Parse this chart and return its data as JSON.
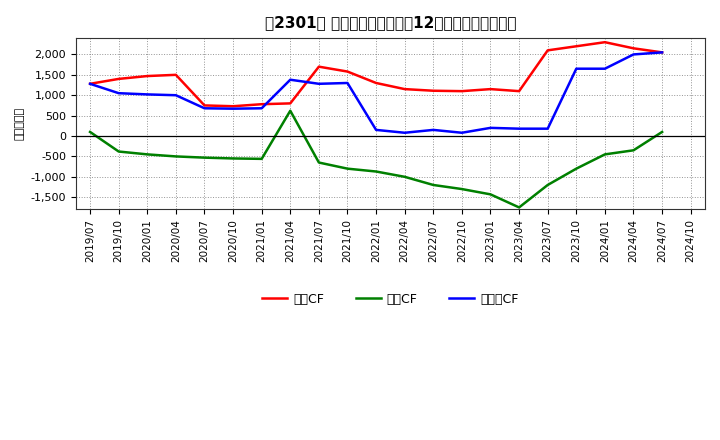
{
  "title2": "【2301】 キャッシュフローの12か月移動合計の推移",
  "ylabel": "（百万円）",
  "dates": [
    "2019/07",
    "2019/10",
    "2020/01",
    "2020/04",
    "2020/07",
    "2020/10",
    "2021/01",
    "2021/04",
    "2021/07",
    "2021/10",
    "2022/01",
    "2022/04",
    "2022/07",
    "2022/10",
    "2023/01",
    "2023/04",
    "2023/07",
    "2023/10",
    "2024/01",
    "2024/04",
    "2024/07",
    "2024/10"
  ],
  "eigyo_cf": [
    1280,
    1400,
    1470,
    1500,
    750,
    730,
    780,
    800,
    1700,
    1580,
    1300,
    1150,
    1110,
    1100,
    1150,
    1100,
    2100,
    2200,
    2300,
    2150,
    2050,
    null
  ],
  "toshi_cf": [
    100,
    -380,
    -450,
    -500,
    -530,
    -550,
    -560,
    620,
    -650,
    -800,
    -870,
    -1000,
    -1200,
    -1300,
    -1430,
    -1750,
    -1200,
    -800,
    -450,
    -350,
    100,
    null
  ],
  "free_cf": [
    1280,
    1050,
    1020,
    1000,
    680,
    670,
    680,
    1380,
    1280,
    1300,
    150,
    80,
    150,
    80,
    200,
    180,
    180,
    1650,
    1650,
    2000,
    2050,
    null
  ],
  "eigyo_color": "#ff0000",
  "toshi_color": "#008000",
  "free_color": "#0000ff",
  "ylim": [
    -1800,
    2400
  ],
  "yticks": [
    -1500,
    -1000,
    -500,
    0,
    500,
    1000,
    1500,
    2000
  ],
  "background_color": "#ffffff",
  "grid_color": "#888888",
  "legend_labels": [
    "営業CF",
    "投資CF",
    "フリーCF"
  ]
}
